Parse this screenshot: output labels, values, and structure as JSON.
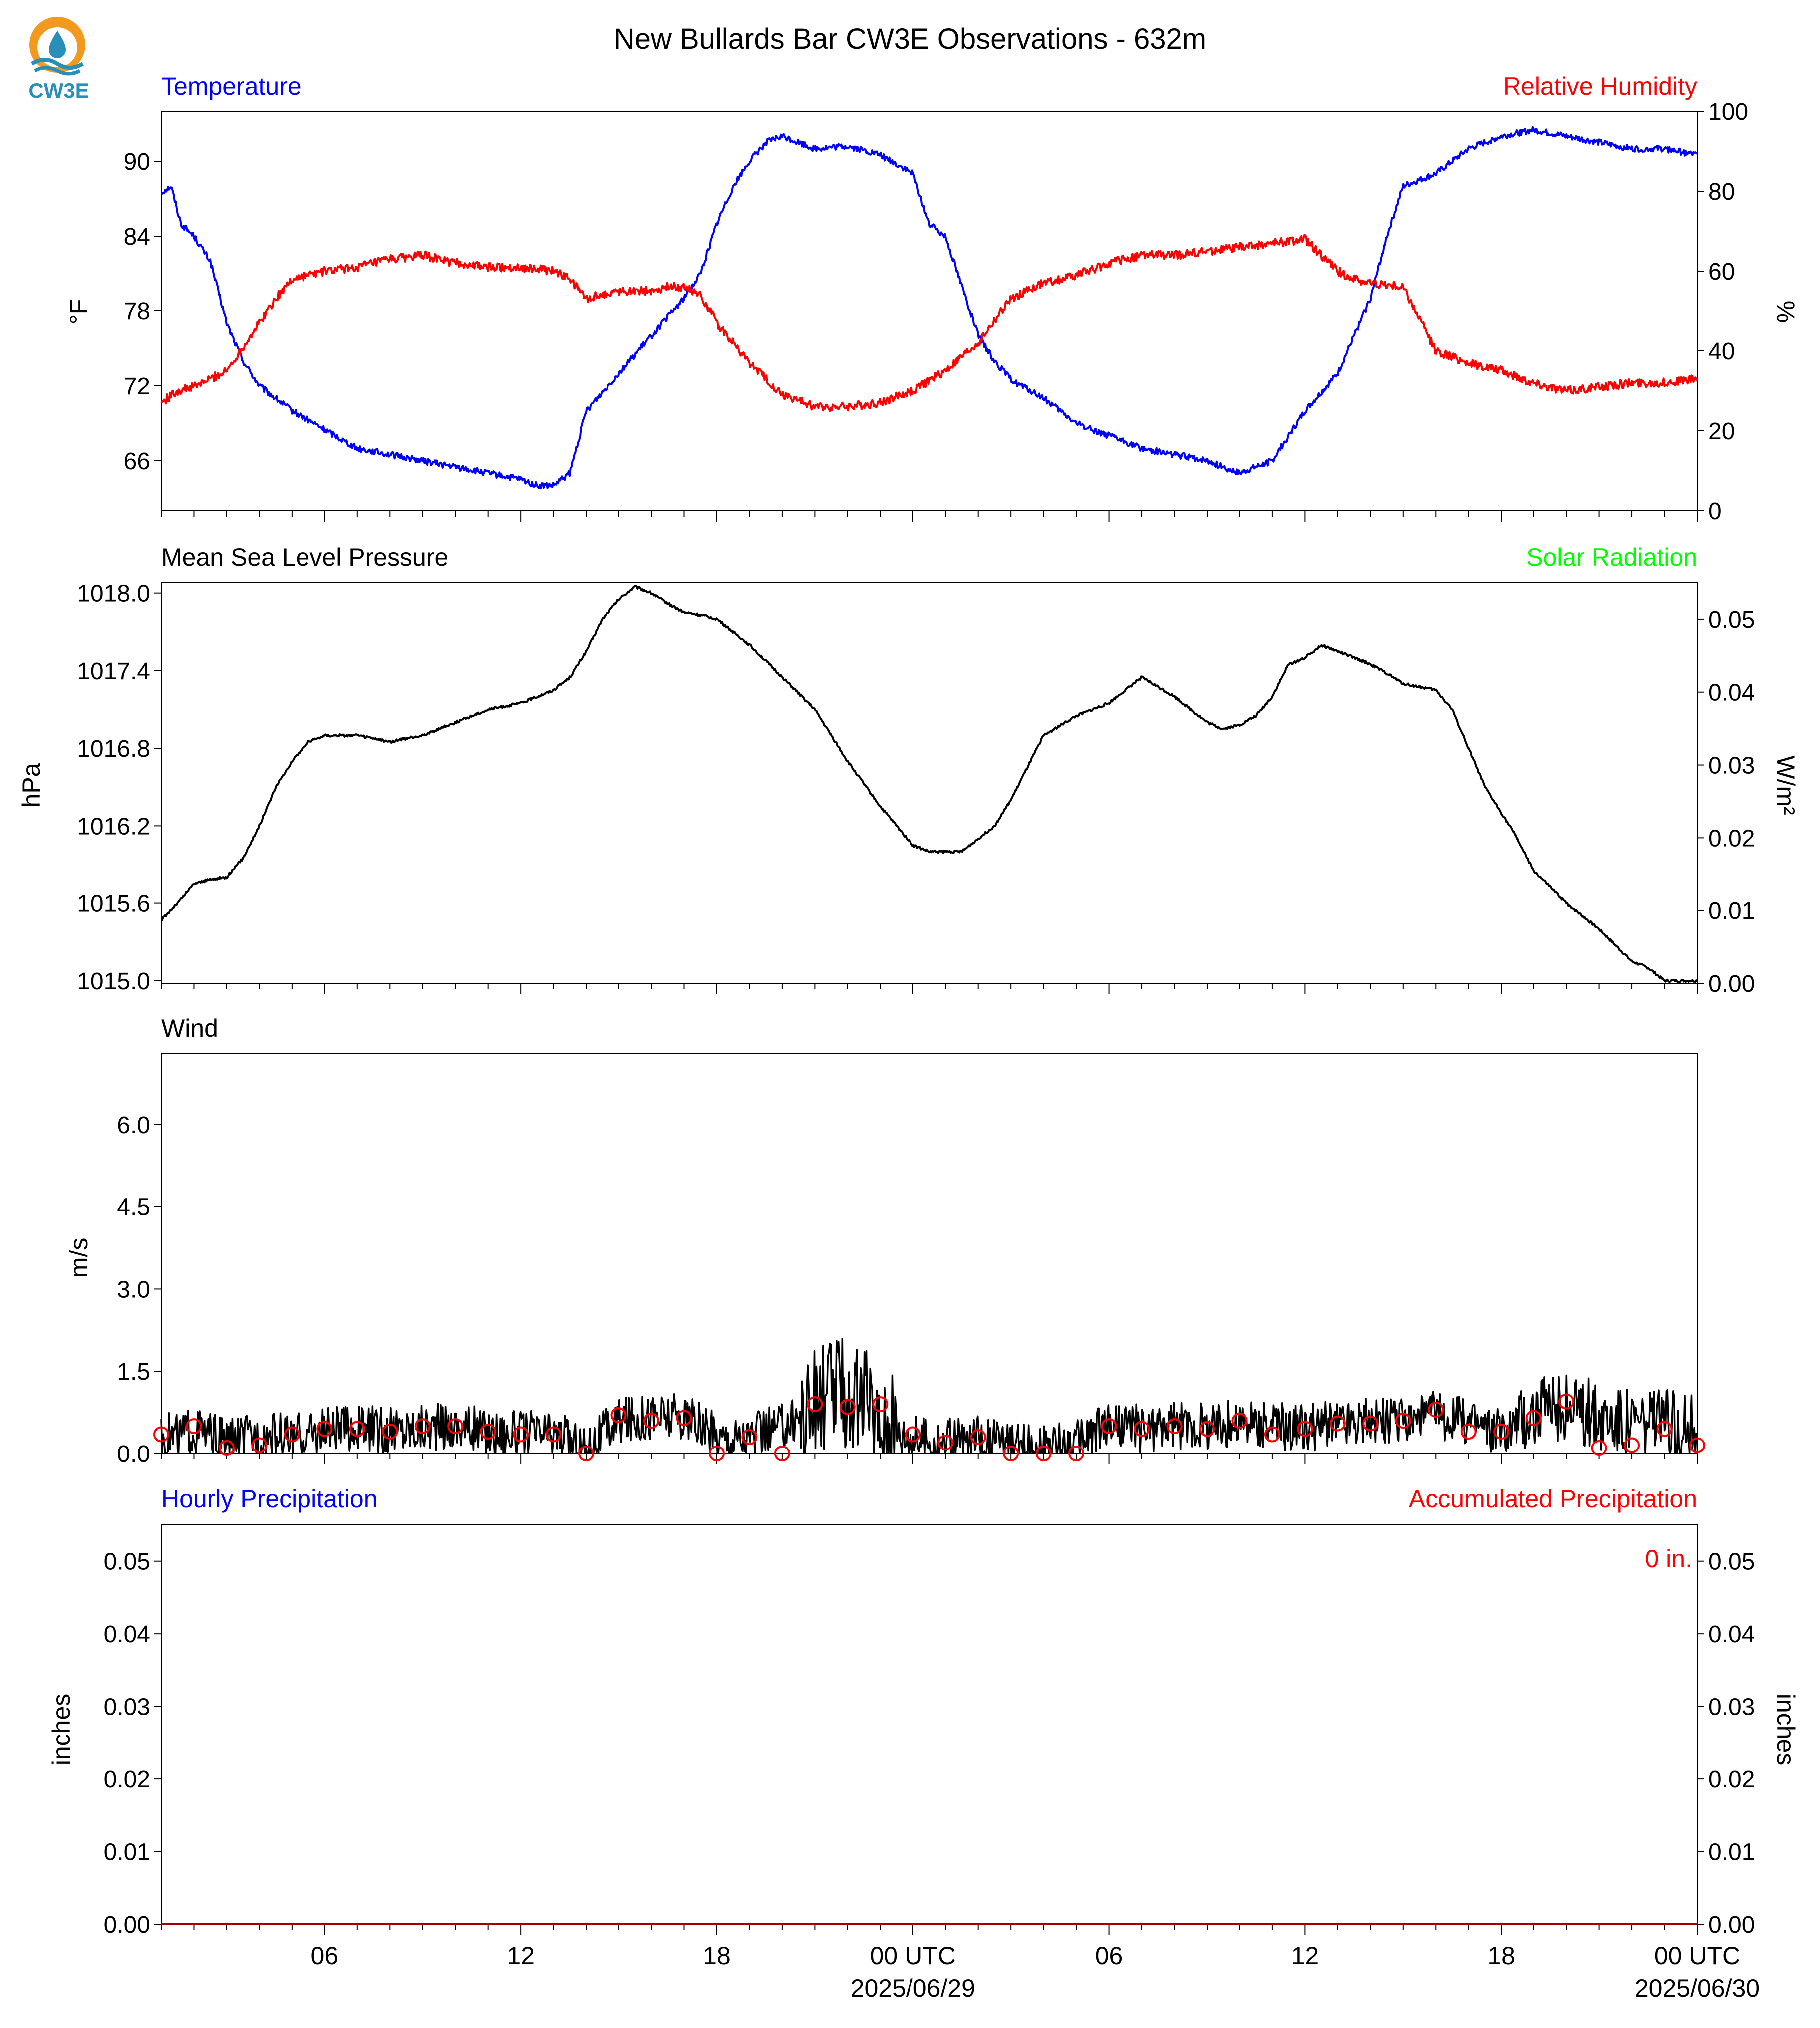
{
  "figure": {
    "title": "New Bullards Bar CW3E Observations - 632m",
    "logo_text": "CW3E",
    "colors": {
      "temperature": "#0000ff",
      "humidity": "#ff0000",
      "pressure": "#000000",
      "solar": "#00ff00",
      "wind": "#000000",
      "gust_marker": "#ff0000",
      "hourly_precip": "#0000ff",
      "accum_precip": "#ff0000",
      "logo_orange": "#f39a1e",
      "logo_blue": "#2a8fb8"
    }
  },
  "chart_data": [
    {
      "type": "line",
      "name": "temperature-humidity",
      "left_title": "Temperature",
      "right_title": "Relative Humidity",
      "ylabel": "°F",
      "ylabel_right": "%",
      "ylim": [
        62,
        94
      ],
      "ylim_right": [
        0,
        100
      ],
      "yticks": [
        66,
        72,
        78,
        84,
        90
      ],
      "yticks_right": [
        0,
        20,
        40,
        60,
        80,
        100
      ],
      "xlim_hours": [
        1,
        48
      ],
      "series": [
        {
          "name": "Temperature",
          "axis": "left",
          "x": [
            1,
            1.3,
            1.6,
            2,
            2.5,
            3,
            3.5,
            4,
            5,
            6,
            7,
            8,
            9,
            10,
            11,
            12,
            12.5,
            13,
            13.5,
            14,
            15,
            16,
            17,
            17.5,
            18,
            18.5,
            19,
            19.5,
            20,
            20.5,
            21,
            22,
            23,
            24,
            24.5,
            25,
            25.5,
            26,
            26.5,
            27,
            28,
            29,
            30,
            31,
            32,
            33,
            34,
            35,
            36,
            37,
            37.5,
            38,
            38.5,
            39,
            40,
            41,
            42,
            43,
            44,
            45,
            46,
            47,
            48
          ],
          "y": [
            87.5,
            88,
            85,
            84,
            82,
            77,
            74,
            72,
            70,
            68.5,
            67,
            66.5,
            66,
            65.5,
            65,
            64.5,
            64,
            64,
            65,
            70,
            73,
            76,
            79,
            81,
            85,
            88,
            90,
            91.5,
            92,
            91.5,
            91,
            91.2,
            90.5,
            89,
            85,
            84,
            80,
            76,
            74,
            72.5,
            71,
            69,
            68,
            67,
            66.5,
            66,
            65,
            66,
            70,
            73,
            76,
            79,
            84,
            88,
            89,
            91,
            92,
            92.5,
            92,
            91.5,
            91,
            91,
            90.5
          ]
        },
        {
          "name": "Relative Humidity",
          "axis": "right",
          "x": [
            1,
            1.5,
            2,
            3,
            3.5,
            4,
            4.5,
            5,
            6,
            7,
            8,
            9,
            10,
            11,
            12,
            13,
            13.5,
            14,
            15,
            16,
            16.5,
            17,
            17.5,
            18,
            18.5,
            19,
            20,
            21,
            22,
            23,
            24,
            25,
            26,
            27,
            28,
            29,
            30,
            31,
            32,
            33,
            34,
            35,
            36,
            37,
            37.5,
            38,
            39,
            40,
            41,
            42,
            43,
            44,
            45,
            46,
            47,
            48
          ],
          "y": [
            27,
            30,
            31,
            35,
            41,
            47,
            53,
            58,
            60,
            61,
            63,
            64,
            62,
            61,
            61,
            60,
            58,
            53,
            55,
            55,
            56,
            56,
            54,
            47,
            42,
            37,
            29,
            26,
            26,
            27,
            30,
            35,
            42,
            53,
            57,
            59,
            62,
            64,
            64,
            65,
            66,
            67,
            68,
            60,
            58,
            57,
            56,
            40,
            37,
            35,
            32,
            30,
            31,
            32,
            32,
            33
          ]
        }
      ]
    },
    {
      "type": "line",
      "name": "pressure-solar",
      "left_title": "Mean Sea Level Pressure",
      "right_title": "Solar Radiation",
      "ylabel": "hPa",
      "ylabel_right": "W/m²",
      "ylim": [
        1014.98,
        1018.08
      ],
      "ylim_right": [
        0,
        0.055
      ],
      "yticks": [
        "1015.0",
        "1015.6",
        "1016.2",
        "1016.8",
        "1017.4",
        "1018.0"
      ],
      "yticks_right": [
        "0.00",
        "0.01",
        "0.02",
        "0.03",
        "0.04",
        "0.05"
      ],
      "xlim_hours": [
        1,
        48
      ],
      "series": [
        {
          "name": "Mean Sea Level Pressure",
          "axis": "left",
          "x": [
            1,
            1.5,
            2,
            2.5,
            3,
            3.5,
            4,
            4.5,
            5,
            5.5,
            6,
            7,
            8,
            9,
            10,
            11,
            12,
            13,
            13.5,
            14,
            14.5,
            15,
            15.5,
            16,
            16.5,
            17,
            17.5,
            18,
            19,
            20,
            21,
            22,
            23,
            24,
            24.5,
            25,
            25.5,
            26,
            26.5,
            27,
            28,
            29,
            30,
            31,
            32,
            33,
            33.5,
            34,
            34.5,
            35,
            35.5,
            36,
            36.5,
            37,
            38,
            38.5,
            39,
            40,
            40.5,
            41,
            41.5,
            42,
            42.5,
            43,
            44,
            45,
            46,
            46.5,
            47,
            48
          ],
          "y": [
            1015.47,
            1015.6,
            1015.75,
            1015.78,
            1015.8,
            1015.95,
            1016.2,
            1016.5,
            1016.7,
            1016.85,
            1016.9,
            1016.9,
            1016.85,
            1016.9,
            1017.0,
            1017.1,
            1017.15,
            1017.25,
            1017.35,
            1017.55,
            1017.8,
            1017.95,
            1018.05,
            1018.0,
            1017.92,
            1017.85,
            1017.83,
            1017.8,
            1017.6,
            1017.35,
            1017.1,
            1016.7,
            1016.35,
            1016.05,
            1016.0,
            1016.0,
            1016.0,
            1016.1,
            1016.2,
            1016.4,
            1016.9,
            1017.05,
            1017.15,
            1017.35,
            1017.2,
            1017.0,
            1016.95,
            1016.98,
            1017.05,
            1017.2,
            1017.45,
            1017.5,
            1017.6,
            1017.55,
            1017.45,
            1017.38,
            1017.3,
            1017.25,
            1017.1,
            1016.8,
            1016.5,
            1016.3,
            1016.1,
            1015.85,
            1015.6,
            1015.4,
            1015.15,
            1015.1,
            1015.0,
            1015.0
          ]
        }
      ]
    },
    {
      "type": "line",
      "name": "wind",
      "left_title": "Wind",
      "ylabel": "m/s",
      "ylim": [
        0,
        7.3
      ],
      "yticks": [
        "0.0",
        "1.5",
        "3.0",
        "4.5",
        "6.0"
      ],
      "xlim_hours": [
        1,
        48
      ],
      "series": [
        {
          "name": "Wind",
          "axis": "left",
          "x": [
            1,
            2,
            3,
            4,
            5,
            6,
            7,
            8,
            9,
            10,
            11,
            12,
            13,
            14,
            15,
            16,
            17,
            18,
            19,
            20,
            21,
            21.5,
            22,
            22.5,
            23,
            24,
            25,
            26,
            27,
            28,
            29,
            30,
            31,
            32,
            33,
            34,
            35,
            36,
            37,
            38,
            39,
            40,
            41,
            42,
            43,
            44,
            45,
            46,
            47,
            48
          ],
          "y": [
            0.3,
            0.4,
            0.2,
            0.3,
            0.3,
            0.4,
            0.45,
            0.4,
            0.5,
            0.5,
            0.4,
            0.35,
            0.35,
            0.1,
            0.6,
            0.7,
            0.65,
            0.3,
            0.3,
            0.5,
            0.9,
            1.2,
            1.0,
            0.9,
            0.5,
            0.3,
            0.2,
            0.25,
            0.1,
            0.1,
            0.2,
            0.55,
            0.45,
            0.5,
            0.5,
            0.55,
            0.5,
            0.45,
            0.55,
            0.6,
            0.6,
            0.7,
            0.6,
            0.4,
            0.8,
            0.8,
            0.7,
            0.6,
            0.55,
            0.4
          ]
        },
        {
          "name": "Gust",
          "axis": "left",
          "marker": "circle",
          "x": [
            1,
            2,
            3,
            4,
            5,
            6,
            7,
            8,
            9,
            10,
            11,
            12,
            13,
            14,
            15,
            16,
            17,
            18,
            19,
            20,
            21,
            22,
            23,
            24,
            25,
            26,
            27,
            28,
            29,
            30,
            31,
            32,
            33,
            34,
            35,
            36,
            37,
            38,
            39,
            40,
            41,
            42,
            43,
            44,
            45,
            46,
            47,
            48
          ],
          "y": [
            0.35,
            0.5,
            0.1,
            0.15,
            0.35,
            0.45,
            0.45,
            0.4,
            0.5,
            0.5,
            0.4,
            0.35,
            0.35,
            0.0,
            0.7,
            0.6,
            0.65,
            0.0,
            0.3,
            0.0,
            0.9,
            0.85,
            0.9,
            0.35,
            0.2,
            0.3,
            0.0,
            0.0,
            0.0,
            0.5,
            0.45,
            0.5,
            0.45,
            0.6,
            0.35,
            0.45,
            0.55,
            0.55,
            0.6,
            0.8,
            0.4,
            0.4,
            0.65,
            0.95,
            0.1,
            0.15,
            0.45,
            0.15
          ]
        }
      ]
    },
    {
      "type": "line",
      "name": "precipitation",
      "left_title": "Hourly Precipitation",
      "right_title": "Accumulated Precipitation",
      "ylabel": "inches",
      "ylabel_right": "inches",
      "annotation": "0 in.",
      "ylim": [
        0,
        0.055
      ],
      "ylim_right": [
        0,
        0.055
      ],
      "yticks": [
        "0.00",
        "0.01",
        "0.02",
        "0.03",
        "0.04",
        "0.05"
      ],
      "yticks_right": [
        "0.00",
        "0.01",
        "0.02",
        "0.03",
        "0.04",
        "0.05"
      ],
      "xlim_hours": [
        1,
        48
      ],
      "series": [
        {
          "name": "Hourly Precipitation",
          "axis": "left",
          "x": [
            1,
            48
          ],
          "y": [
            0,
            0
          ]
        },
        {
          "name": "Accumulated Precipitation",
          "axis": "right",
          "x": [
            1,
            48
          ],
          "y": [
            0,
            0
          ]
        }
      ]
    }
  ],
  "x_axis": {
    "tick_labels": [
      {
        "hour": 6,
        "label": "06",
        "sub": ""
      },
      {
        "hour": 12,
        "label": "12",
        "sub": ""
      },
      {
        "hour": 18,
        "label": "18",
        "sub": ""
      },
      {
        "hour": 24,
        "label": "00 UTC",
        "sub": "2025/06/29"
      },
      {
        "hour": 30,
        "label": "06",
        "sub": ""
      },
      {
        "hour": 36,
        "label": "12",
        "sub": ""
      },
      {
        "hour": 42,
        "label": "18",
        "sub": ""
      },
      {
        "hour": 48,
        "label": "00 UTC",
        "sub": "2025/06/30"
      }
    ]
  }
}
